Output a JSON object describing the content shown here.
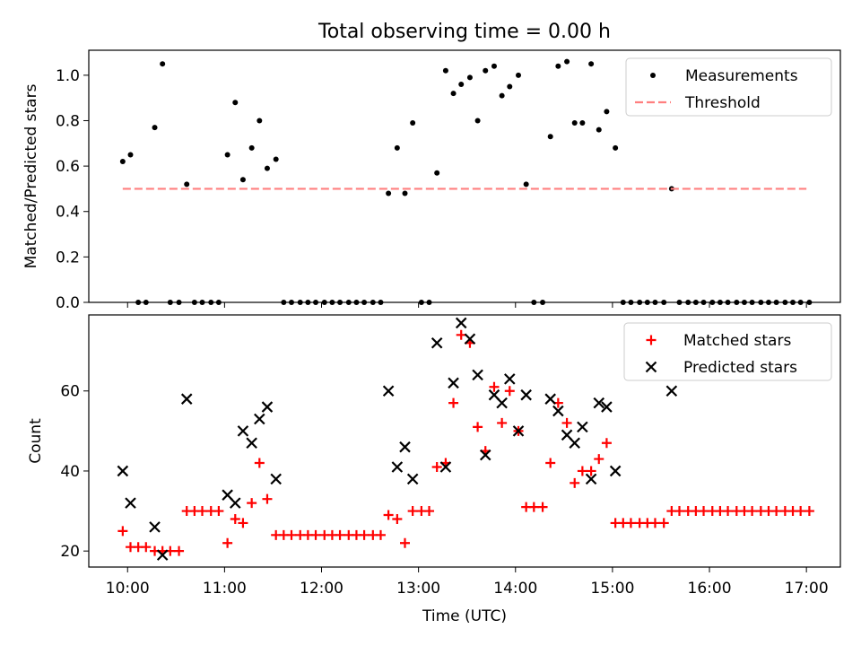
{
  "title": "Total observing time = 0.00 h",
  "chart_data": [
    {
      "type": "scatter",
      "ylabel": "Matched/Predicted stars",
      "xlabel": "",
      "x_unit": "hours UTC",
      "xlim": [
        9.6,
        17.35
      ],
      "ylim": [
        0,
        1.11
      ],
      "yticks": [
        0.0,
        0.2,
        0.4,
        0.6,
        0.8,
        1.0
      ],
      "ytick_labels": [
        "0.0",
        "0.2",
        "0.4",
        "0.6",
        "0.8",
        "1.0"
      ],
      "grid": false,
      "legend_position": "top-right",
      "series": [
        {
          "name": "Measurements",
          "marker": "dot",
          "color": "#000000",
          "points": [
            [
              9.95,
              0.62
            ],
            [
              10.03,
              0.65
            ],
            [
              10.11,
              0.0
            ],
            [
              10.19,
              0.0
            ],
            [
              10.28,
              0.77
            ],
            [
              10.36,
              1.05
            ],
            [
              10.44,
              0.0
            ],
            [
              10.53,
              0.0
            ],
            [
              10.61,
              0.52
            ],
            [
              10.69,
              0.0
            ],
            [
              10.77,
              0.0
            ],
            [
              10.86,
              0.0
            ],
            [
              10.94,
              0.0
            ],
            [
              11.03,
              0.65
            ],
            [
              11.11,
              0.88
            ],
            [
              11.19,
              0.54
            ],
            [
              11.28,
              0.68
            ],
            [
              11.36,
              0.8
            ],
            [
              11.44,
              0.59
            ],
            [
              11.53,
              0.63
            ],
            [
              11.61,
              0.0
            ],
            [
              11.69,
              0.0
            ],
            [
              11.78,
              0.0
            ],
            [
              11.86,
              0.0
            ],
            [
              11.94,
              0.0
            ],
            [
              12.03,
              0.0
            ],
            [
              12.11,
              0.0
            ],
            [
              12.19,
              0.0
            ],
            [
              12.28,
              0.0
            ],
            [
              12.36,
              0.0
            ],
            [
              12.44,
              0.0
            ],
            [
              12.53,
              0.0
            ],
            [
              12.61,
              0.0
            ],
            [
              12.69,
              0.48
            ],
            [
              12.78,
              0.68
            ],
            [
              12.86,
              0.48
            ],
            [
              12.94,
              0.79
            ],
            [
              13.03,
              0.0
            ],
            [
              13.11,
              0.0
            ],
            [
              13.19,
              0.57
            ],
            [
              13.28,
              1.02
            ],
            [
              13.36,
              0.92
            ],
            [
              13.44,
              0.96
            ],
            [
              13.53,
              0.99
            ],
            [
              13.61,
              0.8
            ],
            [
              13.69,
              1.02
            ],
            [
              13.78,
              1.04
            ],
            [
              13.86,
              0.91
            ],
            [
              13.94,
              0.95
            ],
            [
              14.03,
              1.0
            ],
            [
              14.11,
              0.52
            ],
            [
              14.19,
              0.0
            ],
            [
              14.28,
              0.0
            ],
            [
              14.36,
              0.73
            ],
            [
              14.44,
              1.04
            ],
            [
              14.53,
              1.06
            ],
            [
              14.61,
              0.79
            ],
            [
              14.69,
              0.79
            ],
            [
              14.78,
              1.05
            ],
            [
              14.86,
              0.76
            ],
            [
              14.94,
              0.84
            ],
            [
              15.03,
              0.68
            ],
            [
              15.11,
              0.0
            ],
            [
              15.19,
              0.0
            ],
            [
              15.28,
              0.0
            ],
            [
              15.36,
              0.0
            ],
            [
              15.44,
              0.0
            ],
            [
              15.53,
              0.0
            ],
            [
              15.61,
              0.5
            ],
            [
              15.69,
              0.0
            ],
            [
              15.78,
              0.0
            ],
            [
              15.86,
              0.0
            ],
            [
              15.94,
              0.0
            ],
            [
              16.03,
              0.0
            ],
            [
              16.11,
              0.0
            ],
            [
              16.19,
              0.0
            ],
            [
              16.28,
              0.0
            ],
            [
              16.36,
              0.0
            ],
            [
              16.44,
              0.0
            ],
            [
              16.53,
              0.0
            ],
            [
              16.61,
              0.0
            ],
            [
              16.69,
              0.0
            ],
            [
              16.78,
              0.0
            ],
            [
              16.86,
              0.0
            ],
            [
              16.94,
              0.0
            ],
            [
              17.03,
              0.0
            ]
          ]
        },
        {
          "name": "Threshold",
          "marker": "dashed-line",
          "color": "#ff7f7f",
          "points": [
            [
              9.95,
              0.5
            ],
            [
              17.0,
              0.5
            ]
          ]
        }
      ]
    },
    {
      "type": "scatter",
      "ylabel": "Count",
      "xlabel": "Time (UTC)",
      "x_unit": "hours UTC",
      "xlim": [
        9.6,
        17.35
      ],
      "ylim": [
        16,
        79
      ],
      "yticks": [
        20,
        40,
        60
      ],
      "ytick_labels": [
        "20",
        "40",
        "60"
      ],
      "xticks": [
        10,
        11,
        12,
        13,
        14,
        15,
        16,
        17
      ],
      "xtick_labels": [
        "10:00",
        "11:00",
        "12:00",
        "13:00",
        "14:00",
        "15:00",
        "16:00",
        "17:00"
      ],
      "grid": false,
      "legend_position": "top-right",
      "series": [
        {
          "name": "Matched stars",
          "marker": "plus",
          "color": "#ff0000",
          "points": [
            [
              9.95,
              25
            ],
            [
              10.03,
              21
            ],
            [
              10.11,
              21
            ],
            [
              10.19,
              21
            ],
            [
              10.28,
              20
            ],
            [
              10.36,
              20
            ],
            [
              10.44,
              20
            ],
            [
              10.53,
              20
            ],
            [
              10.61,
              30
            ],
            [
              10.69,
              30
            ],
            [
              10.77,
              30
            ],
            [
              10.86,
              30
            ],
            [
              10.94,
              30
            ],
            [
              11.03,
              22
            ],
            [
              11.11,
              28
            ],
            [
              11.19,
              27
            ],
            [
              11.28,
              32
            ],
            [
              11.36,
              42
            ],
            [
              11.44,
              33
            ],
            [
              11.53,
              24
            ],
            [
              11.61,
              24
            ],
            [
              11.69,
              24
            ],
            [
              11.78,
              24
            ],
            [
              11.86,
              24
            ],
            [
              11.94,
              24
            ],
            [
              12.03,
              24
            ],
            [
              12.11,
              24
            ],
            [
              12.19,
              24
            ],
            [
              12.28,
              24
            ],
            [
              12.36,
              24
            ],
            [
              12.44,
              24
            ],
            [
              12.53,
              24
            ],
            [
              12.61,
              24
            ],
            [
              12.69,
              29
            ],
            [
              12.78,
              28
            ],
            [
              12.86,
              22
            ],
            [
              12.94,
              30
            ],
            [
              13.03,
              30
            ],
            [
              13.11,
              30
            ],
            [
              13.19,
              41
            ],
            [
              13.28,
              42
            ],
            [
              13.36,
              57
            ],
            [
              13.44,
              74
            ],
            [
              13.53,
              72
            ],
            [
              13.61,
              51
            ],
            [
              13.69,
              45
            ],
            [
              13.78,
              61
            ],
            [
              13.86,
              52
            ],
            [
              13.94,
              60
            ],
            [
              14.03,
              50
            ],
            [
              14.11,
              31
            ],
            [
              14.19,
              31
            ],
            [
              14.28,
              31
            ],
            [
              14.36,
              42
            ],
            [
              14.44,
              57
            ],
            [
              14.53,
              52
            ],
            [
              14.61,
              37
            ],
            [
              14.69,
              40
            ],
            [
              14.78,
              40
            ],
            [
              14.86,
              43
            ],
            [
              14.94,
              47
            ],
            [
              15.03,
              27
            ],
            [
              15.11,
              27
            ],
            [
              15.19,
              27
            ],
            [
              15.28,
              27
            ],
            [
              15.36,
              27
            ],
            [
              15.44,
              27
            ],
            [
              15.53,
              27
            ],
            [
              15.61,
              30
            ],
            [
              15.69,
              30
            ],
            [
              15.78,
              30
            ],
            [
              15.86,
              30
            ],
            [
              15.94,
              30
            ],
            [
              16.03,
              30
            ],
            [
              16.11,
              30
            ],
            [
              16.19,
              30
            ],
            [
              16.28,
              30
            ],
            [
              16.36,
              30
            ],
            [
              16.44,
              30
            ],
            [
              16.53,
              30
            ],
            [
              16.61,
              30
            ],
            [
              16.69,
              30
            ],
            [
              16.78,
              30
            ],
            [
              16.86,
              30
            ],
            [
              16.94,
              30
            ],
            [
              17.03,
              30
            ]
          ]
        },
        {
          "name": "Predicted stars",
          "marker": "x",
          "color": "#000000",
          "points": [
            [
              9.95,
              40
            ],
            [
              10.03,
              32
            ],
            [
              10.28,
              26
            ],
            [
              10.36,
              19
            ],
            [
              10.61,
              58
            ],
            [
              11.03,
              34
            ],
            [
              11.11,
              32
            ],
            [
              11.19,
              50
            ],
            [
              11.28,
              47
            ],
            [
              11.36,
              53
            ],
            [
              11.44,
              56
            ],
            [
              11.53,
              38
            ],
            [
              12.69,
              60
            ],
            [
              12.78,
              41
            ],
            [
              12.86,
              46
            ],
            [
              12.94,
              38
            ],
            [
              13.19,
              72
            ],
            [
              13.28,
              41
            ],
            [
              13.36,
              62
            ],
            [
              13.44,
              77
            ],
            [
              13.53,
              73
            ],
            [
              13.61,
              64
            ],
            [
              13.69,
              44
            ],
            [
              13.78,
              59
            ],
            [
              13.86,
              57
            ],
            [
              13.94,
              63
            ],
            [
              14.03,
              50
            ],
            [
              14.11,
              59
            ],
            [
              14.36,
              58
            ],
            [
              14.44,
              55
            ],
            [
              14.53,
              49
            ],
            [
              14.61,
              47
            ],
            [
              14.69,
              51
            ],
            [
              14.78,
              38
            ],
            [
              14.86,
              57
            ],
            [
              14.94,
              56
            ],
            [
              15.03,
              40
            ],
            [
              15.61,
              60
            ]
          ]
        }
      ]
    }
  ]
}
